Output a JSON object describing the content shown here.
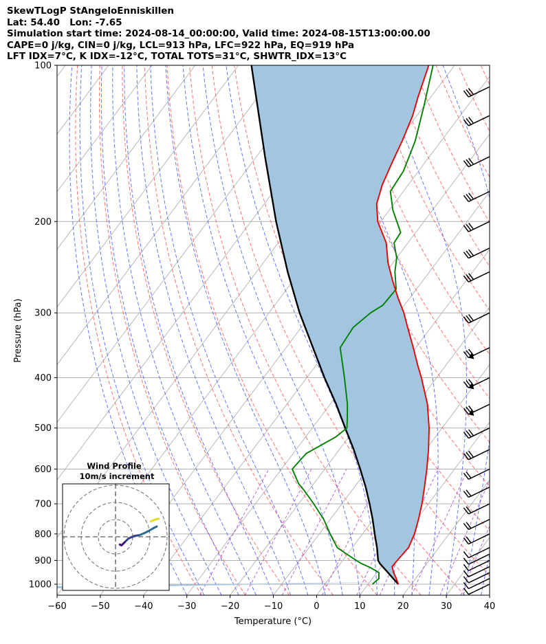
{
  "header": {
    "line1": "SkewTLogP StAngeloEnniskillen",
    "line2": "Lat: 54.40   Lon: -7.65",
    "line3": "Simulation start time: 2024-08-14_00:00:00, Valid time: 2024-08-15T13:00:00.00",
    "line4": "CAPE=0 j/kg, CIN=0 j/kg, LCL=913 hPa, LFC=922 hPa, EQ=919 hPa",
    "line5": "LFT IDX=7°C, K IDX=-12°C, TOTAL TOTS=31°C, SHWTR_IDX=13°C"
  },
  "chart_data": {
    "type": "line",
    "subtype": "skew-T log-P",
    "xlabel": "Temperature ($^\\circ$C)",
    "ylabel": "Pressure (hPa)",
    "xlim": [
      -60,
      40
    ],
    "ylim": [
      1050,
      100
    ],
    "y_scale": "log",
    "grid": true,
    "x_ticks": [
      -60,
      -50,
      -40,
      -30,
      -20,
      -10,
      0,
      10,
      20,
      30,
      40
    ],
    "x_tick_labels": [
      "−60",
      "−50",
      "−40",
      "−30",
      "−20",
      "−10",
      "0",
      "10",
      "20",
      "30",
      "40"
    ],
    "y_ticks": [
      1000,
      900,
      800,
      700,
      600,
      500,
      400,
      300,
      200,
      100
    ],
    "colors": {
      "temperature": "#e60000",
      "dewpoint": "#008000",
      "parcel": "#000000",
      "cape_fill": "#a3c6e0",
      "dry_adiabat": "#ff6060",
      "moist_adiabat": "#4a5cff",
      "mixing_ratio": "#9b30c8",
      "isotherm": "#b0b0b0"
    },
    "series": [
      {
        "name": "Temperature",
        "p": [
          1000,
          970,
          950,
          925,
          900,
          850,
          800,
          750,
          700,
          650,
          600,
          550,
          500,
          450,
          400,
          380,
          350,
          320,
          300,
          280,
          260,
          240,
          220,
          200,
          185,
          170,
          155,
          140,
          125,
          115,
          100
        ],
        "t": [
          17,
          15.2,
          13.9,
          12.5,
          12.6,
          13.0,
          12.0,
          10.4,
          8.5,
          6.2,
          3.6,
          0.6,
          -3.0,
          -7.5,
          -13.5,
          -16.3,
          -20.6,
          -25.4,
          -28.8,
          -32.9,
          -37.0,
          -41.2,
          -45.0,
          -50.7,
          -54.0,
          -56.0,
          -57.5,
          -59.0,
          -61.0,
          -63.0,
          -66.0
        ]
      },
      {
        "name": "Dewpoint",
        "p": [
          1000,
          975,
          950,
          930,
          910,
          880,
          850,
          800,
          750,
          700,
          660,
          640,
          600,
          560,
          520,
          500,
          480,
          450,
          400,
          350,
          320,
          300,
          290,
          270,
          250,
          235,
          220,
          210,
          190,
          175,
          160,
          140,
          120,
          100
        ],
        "t": [
          11,
          11.5,
          10.5,
          7.8,
          4.5,
          0.5,
          -3.5,
          -7.5,
          -11.5,
          -16.5,
          -21.0,
          -23.5,
          -27.5,
          -27.0,
          -23.0,
          -22.0,
          -23.5,
          -26.0,
          -31.3,
          -37.5,
          -38.0,
          -36.5,
          -35.0,
          -34.7,
          -38.0,
          -40.0,
          -43.2,
          -43.5,
          -49.2,
          -53.0,
          -53.5,
          -56.0,
          -60.0,
          -65.0
        ]
      },
      {
        "name": "Parcel",
        "p": [
          1000,
          975,
          950,
          925,
          913,
          900,
          850,
          800,
          750,
          700,
          650,
          600,
          550,
          500,
          450,
          400,
          350,
          300,
          250,
          200,
          150,
          100
        ],
        "t": [
          17,
          14.8,
          12.6,
          10.3,
          9.2,
          8.2,
          5.7,
          2.8,
          -0.2,
          -3.6,
          -7.4,
          -11.8,
          -16.7,
          -22.4,
          -28.6,
          -35.9,
          -43.8,
          -52.9,
          -62.8,
          -74.2,
          -88.0,
          -107.0
        ]
      }
    ],
    "wind_barbs": [
      {
        "p": 1000,
        "label": "barb"
      },
      {
        "p": 975,
        "label": "barb"
      },
      {
        "p": 950,
        "label": "barb"
      },
      {
        "p": 925,
        "label": "barb"
      },
      {
        "p": 900,
        "label": "barb"
      },
      {
        "p": 875,
        "label": "barb"
      },
      {
        "p": 850,
        "label": "barb"
      },
      {
        "p": 800,
        "label": "barb"
      },
      {
        "p": 750,
        "label": "barb"
      },
      {
        "p": 700,
        "label": "barb"
      },
      {
        "p": 650,
        "label": "barb"
      },
      {
        "p": 600,
        "label": "barb"
      },
      {
        "p": 550,
        "label": "barb"
      },
      {
        "p": 500,
        "label": "barb"
      },
      {
        "p": 450,
        "label": "barb"
      },
      {
        "p": 400,
        "label": "barb"
      },
      {
        "p": 350,
        "label": "barb"
      },
      {
        "p": 300,
        "label": "barb"
      },
      {
        "p": 250,
        "label": "barb"
      },
      {
        "p": 225,
        "label": "barb"
      },
      {
        "p": 200,
        "label": "barb"
      },
      {
        "p": 175,
        "label": "barb"
      },
      {
        "p": 150,
        "label": "barb"
      },
      {
        "p": 125,
        "label": "barb"
      },
      {
        "p": 110,
        "label": "barb"
      }
    ],
    "inset": {
      "title1": "Wind Profile",
      "title2": "10m/s increment",
      "hodograph_u": [
        2.5,
        3.5,
        4.5,
        6.0,
        7.5,
        11.0,
        14.0,
        16.5,
        19.5,
        22.0,
        24.0
      ],
      "hodograph_v": [
        -4.5,
        -5.0,
        -4.0,
        -2.5,
        -1.0,
        0.5,
        1.0,
        2.0,
        3.5,
        5.0,
        6.0
      ],
      "upper_u": [
        20.5,
        23.0,
        25.0
      ],
      "upper_v": [
        9.0,
        10.0,
        10.5
      ]
    }
  }
}
